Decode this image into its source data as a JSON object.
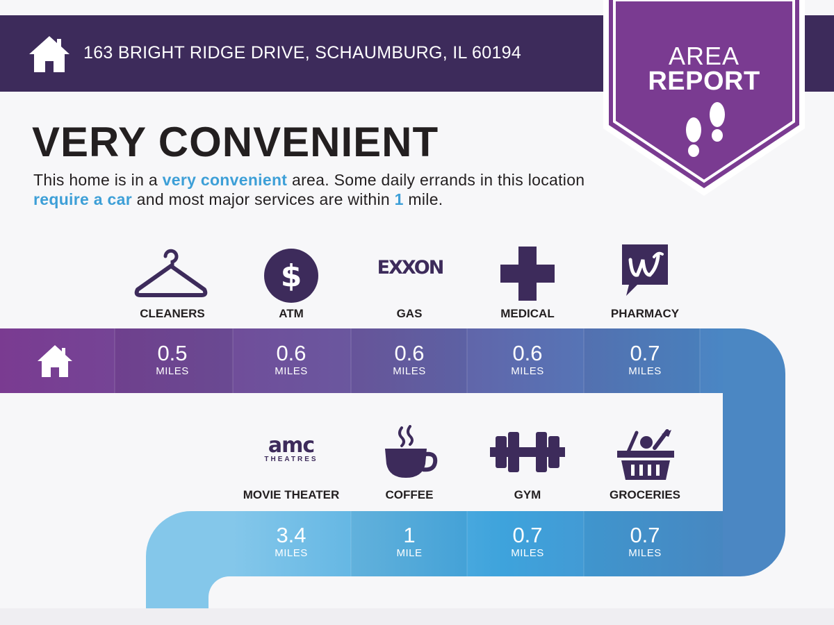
{
  "header": {
    "address": "163 BRIGHT RIDGE DRIVE, SCHAUMBURG, IL 60194",
    "home_icon": "house-icon"
  },
  "badge": {
    "line1": "AREA",
    "line2": "REPORT",
    "icon": "footprints-icon"
  },
  "summary": {
    "headline": "VERY CONVENIENT",
    "desc_1": "This home is in a ",
    "desc_hl_1": "very convenient",
    "desc_2": " area. Some daily errands in this location ",
    "desc_hl_2": "require a car",
    "desc_3": " and most major services are within ",
    "desc_hl_3": "1",
    "desc_4": " mile."
  },
  "colors": {
    "header": "#3d2b5b",
    "badge": "#7a3b91",
    "accent_text": "#3d9fd7",
    "row1_start": "#7a3b91",
    "row2_end": "#84c7ea"
  },
  "row1": [
    {
      "label": "CLEANERS",
      "icon": "hanger-icon",
      "value": "0.5",
      "unit": "MILES"
    },
    {
      "label": "ATM",
      "icon": "dollar-icon",
      "value": "0.6",
      "unit": "MILES"
    },
    {
      "label": "GAS",
      "icon": "exxon-logo",
      "logo_text": "EXXON",
      "value": "0.6",
      "unit": "MILES"
    },
    {
      "label": "MEDICAL",
      "icon": "medical-cross-icon",
      "value": "0.6",
      "unit": "MILES"
    },
    {
      "label": "PHARMACY",
      "icon": "walgreens-logo",
      "value": "0.7",
      "unit": "MILES"
    }
  ],
  "row2": [
    {
      "label": "MOVIE THEATER",
      "icon": "amc-logo",
      "logo_text": "amc",
      "logo_sub": "THEATRES",
      "value": "3.4",
      "unit": "MILES"
    },
    {
      "label": "COFFEE",
      "icon": "coffee-cup-icon",
      "value": "1",
      "unit": "MILE"
    },
    {
      "label": "GYM",
      "icon": "dumbbell-icon",
      "value": "0.7",
      "unit": "MILES"
    },
    {
      "label": "GROCERIES",
      "icon": "grocery-basket-icon",
      "value": "0.7",
      "unit": "MILES"
    }
  ]
}
